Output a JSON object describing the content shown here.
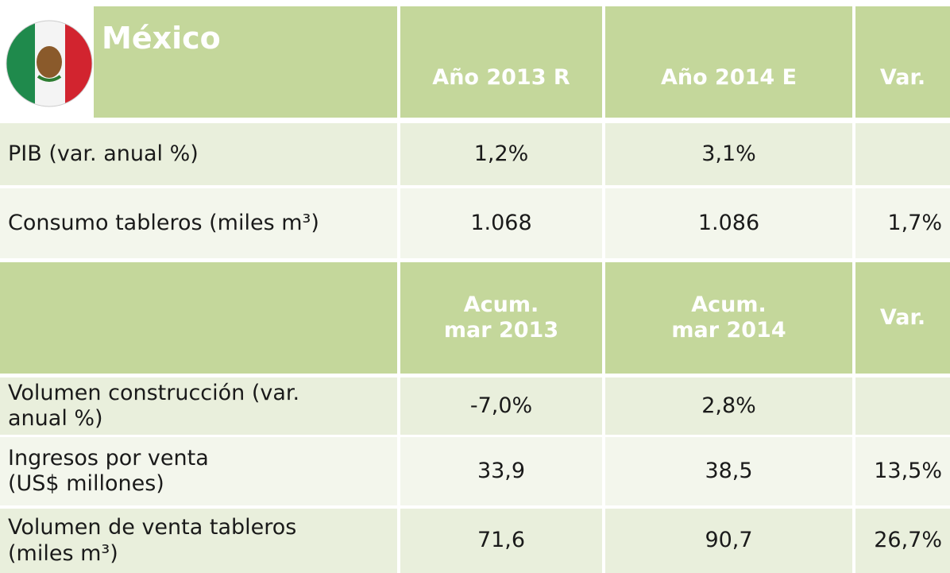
{
  "header": {
    "country": "México",
    "columns": [
      "Año 2013 R",
      "Año 2014 E",
      "Var."
    ]
  },
  "rows": [
    {
      "label": "PIB  (var. anual %)",
      "values": [
        "1,2%",
        "3,1%"
      ]
    },
    {
      "label": "Consumo  tableros (miles m³)",
      "values": [
        "1.068",
        "1.086",
        "1,7%"
      ]
    }
  ],
  "subheader": {
    "columns": [
      "Acum.\nmar 2013",
      "Acum.\nmar 2014",
      "Var."
    ]
  },
  "rows2": [
    {
      "label": "Volumen construcción (var.\nanual %)",
      "values": [
        "-7,0%",
        "2,8%"
      ]
    },
    {
      "label": "Ingresos por venta\n(US$ millones)",
      "values": [
        "33,9",
        "38,5",
        "13,5%"
      ]
    },
    {
      "label": "Volumen de venta tableros\n (miles m³)",
      "values": [
        "71,6",
        "90,7",
        "26,7%"
      ]
    }
  ]
}
